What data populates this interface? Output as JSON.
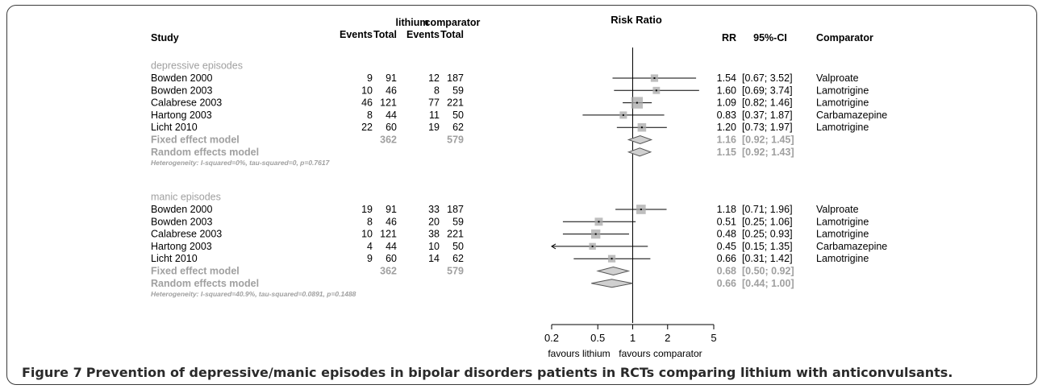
{
  "figure": {
    "caption_label": "Figure 7",
    "caption_text": "Prevention of depressive/manic episodes in bipolar disorders patients in RCTs comparing lithium with anticonvulsants."
  },
  "chart_data": {
    "type": "forest",
    "scale": "log",
    "xlim": [
      0.2,
      5
    ],
    "reference_line": 1,
    "header": {
      "study": "Study",
      "group1": "lithium",
      "group2": "comparator",
      "events": "Events",
      "total": "Total",
      "plot_title": "Risk Ratio",
      "rr": "RR",
      "ci": "95%-CI",
      "comparator": "Comparator"
    },
    "x_ticks": [
      "0.2",
      "0.5",
      "1",
      "2",
      "5"
    ],
    "x_tick_values": [
      0.2,
      0.5,
      1,
      2,
      5
    ],
    "x_label_left": "favours lithium",
    "x_label_right": "favours comparator",
    "subgroups": [
      {
        "name": "depressive episodes",
        "studies": [
          {
            "study": "Bowden 2000",
            "e1": "9",
            "t1": "91",
            "e2": "12",
            "t2": "187",
            "rr": 1.54,
            "lo": 0.67,
            "hi": 3.52,
            "rr_text": "1.54",
            "ci_text": "[0.67; 3.52]",
            "comparator": "Valproate",
            "weight": 0.14
          },
          {
            "study": "Bowden 2003",
            "e1": "10",
            "t1": "46",
            "e2": "8",
            "t2": "59",
            "rr": 1.6,
            "lo": 0.69,
            "hi": 3.74,
            "rr_text": "1.60",
            "ci_text": "[0.69; 3.74]",
            "comparator": "Lamotrigine",
            "weight": 0.12
          },
          {
            "study": "Calabrese 2003",
            "e1": "46",
            "t1": "121",
            "e2": "77",
            "t2": "221",
            "rr": 1.09,
            "lo": 0.82,
            "hi": 1.46,
            "rr_text": "1.09",
            "ci_text": "[0.82; 1.46]",
            "comparator": "Lamotrigine",
            "weight": 0.55
          },
          {
            "study": "Hartong 2003",
            "e1": "8",
            "t1": "44",
            "e2": "11",
            "t2": "50",
            "rr": 0.83,
            "lo": 0.37,
            "hi": 1.87,
            "rr_text": "0.83",
            "ci_text": "[0.37; 1.87]",
            "comparator": "Carbamazepine",
            "weight": 0.13
          },
          {
            "study": "Licht 2010",
            "e1": "22",
            "t1": "60",
            "e2": "19",
            "t2": "62",
            "rr": 1.2,
            "lo": 0.73,
            "hi": 1.97,
            "rr_text": "1.20",
            "ci_text": "[0.73; 1.97]",
            "comparator": "Lamotrigine",
            "weight": 0.22
          }
        ],
        "fixed": {
          "label": "Fixed effect model",
          "t1": "362",
          "t2": "579",
          "rr": 1.16,
          "lo": 0.92,
          "hi": 1.45,
          "rr_text": "1.16",
          "ci_text": "[0.92; 1.45]"
        },
        "random": {
          "label": "Random effects model",
          "rr": 1.15,
          "lo": 0.92,
          "hi": 1.43,
          "rr_text": "1.15",
          "ci_text": "[0.92; 1.43]"
        },
        "heterogeneity": "Heterogeneity: I-squared=0%, tau-squared=0, p=0.7617"
      },
      {
        "name": "manic episodes",
        "studies": [
          {
            "study": "Bowden 2000",
            "e1": "19",
            "t1": "91",
            "e2": "33",
            "t2": "187",
            "rr": 1.18,
            "lo": 0.71,
            "hi": 1.96,
            "rr_text": "1.18",
            "ci_text": "[0.71; 1.96]",
            "comparator": "Valproate",
            "weight": 0.3
          },
          {
            "study": "Bowden 2003",
            "e1": "8",
            "t1": "46",
            "e2": "20",
            "t2": "59",
            "rr": 0.51,
            "lo": 0.25,
            "hi": 1.06,
            "rr_text": "0.51",
            "ci_text": "[0.25; 1.06]",
            "comparator": "Lamotrigine",
            "weight": 0.18
          },
          {
            "study": "Calabrese 2003",
            "e1": "10",
            "t1": "121",
            "e2": "38",
            "t2": "221",
            "rr": 0.48,
            "lo": 0.25,
            "hi": 0.93,
            "rr_text": "0.48",
            "ci_text": "[0.25; 0.93]",
            "comparator": "Lamotrigine",
            "weight": 0.28
          },
          {
            "study": "Hartong 2003",
            "e1": "4",
            "t1": "44",
            "e2": "10",
            "t2": "50",
            "rr": 0.45,
            "lo": 0.15,
            "hi": 1.35,
            "rr_text": "0.45",
            "ci_text": "[0.15; 1.35]",
            "comparator": "Carbamazepine",
            "weight": 0.1
          },
          {
            "study": "Licht 2010",
            "e1": "9",
            "t1": "60",
            "e2": "14",
            "t2": "62",
            "rr": 0.66,
            "lo": 0.31,
            "hi": 1.42,
            "rr_text": "0.66",
            "ci_text": "[0.31; 1.42]",
            "comparator": "Lamotrigine",
            "weight": 0.14
          }
        ],
        "fixed": {
          "label": "Fixed effect model",
          "t1": "362",
          "t2": "579",
          "rr": 0.68,
          "lo": 0.5,
          "hi": 0.92,
          "rr_text": "0.68",
          "ci_text": "[0.50; 0.92]"
        },
        "random": {
          "label": "Random effects model",
          "rr": 0.66,
          "lo": 0.44,
          "hi": 1.0,
          "rr_text": "0.66",
          "ci_text": "[0.44; 1.00]"
        },
        "heterogeneity": "Heterogeneity: I-squared=40.9%, tau-squared=0.0891, p=0.1488"
      }
    ],
    "colors": {
      "text": "#000000",
      "pooled": "#a0a0a0",
      "diamond_fill": "#d0d0d0",
      "box": "#a8a8a8"
    }
  }
}
